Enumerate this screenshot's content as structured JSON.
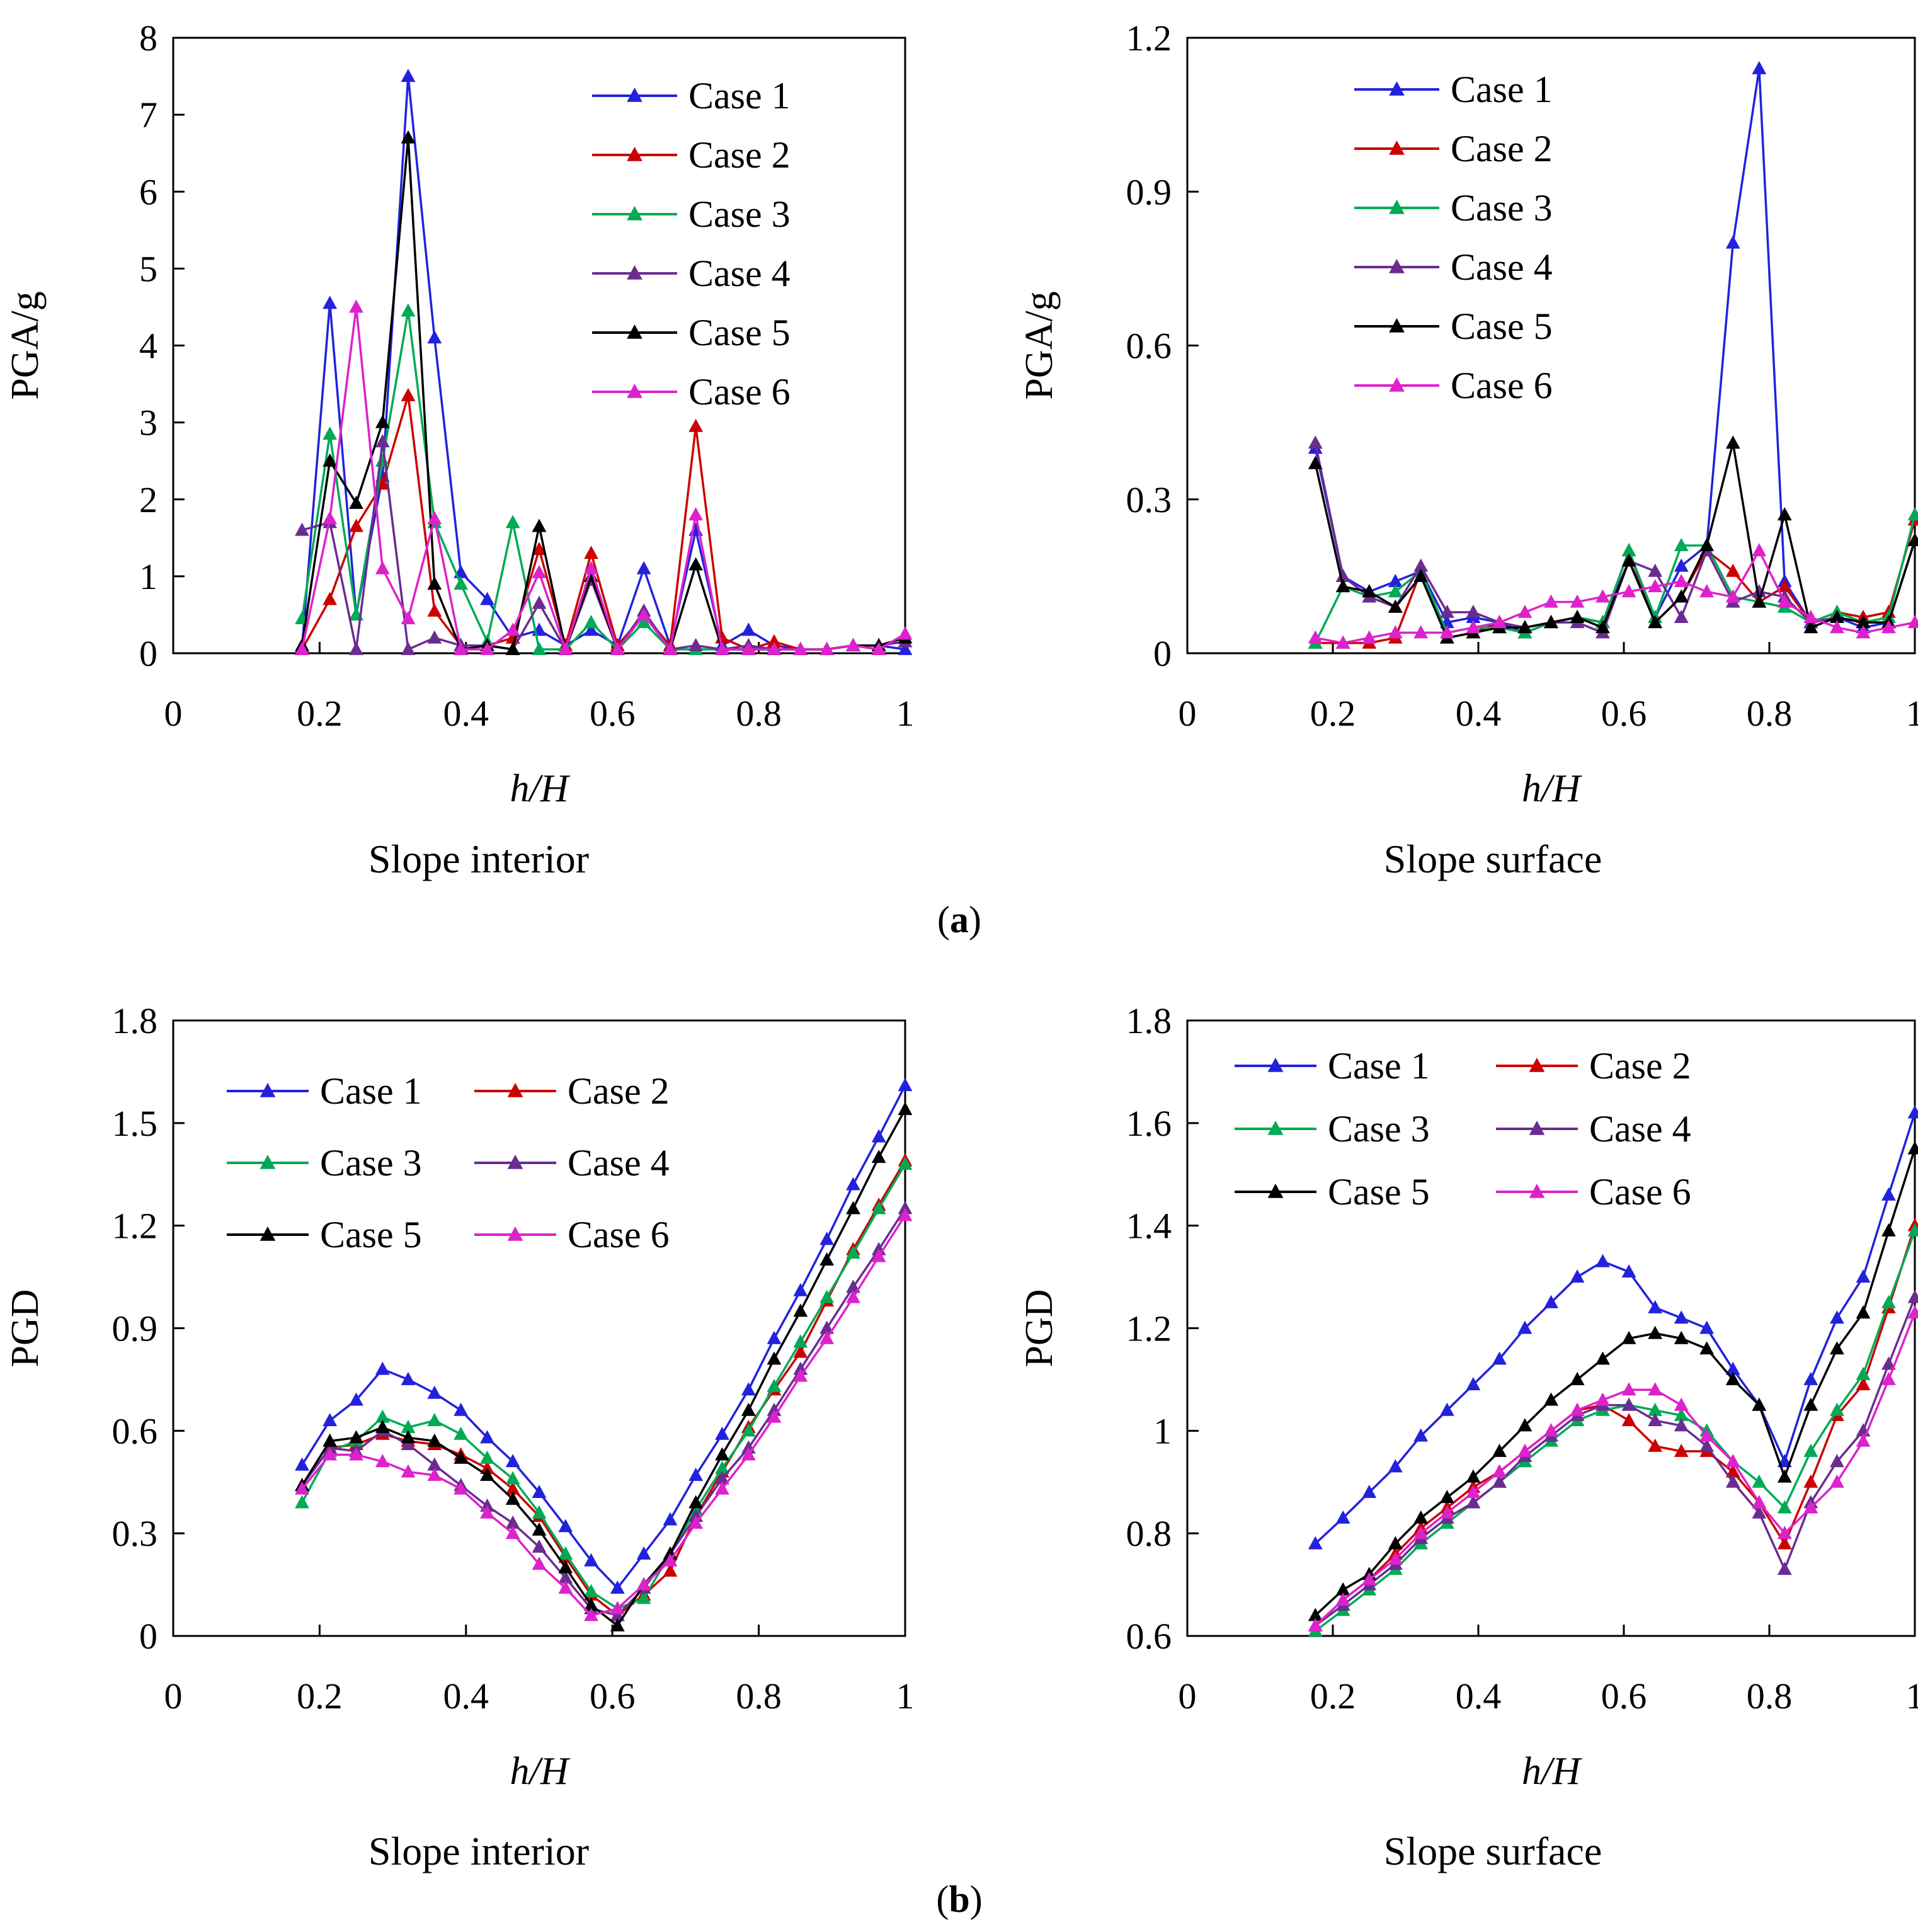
{
  "panel_labels": [
    "(a)",
    "(b)"
  ],
  "series_colors": {
    "Case 1": "#2222dd",
    "Case 2": "#cc0000",
    "Case 3": "#00aa55",
    "Case 4": "#6a2c91",
    "Case 5": "#000000",
    "Case 6": "#dd22cc"
  },
  "chart_data": [
    {
      "type": "line",
      "title": "Slope interior",
      "xlabel": "h/H",
      "ylabel": "PGA/g",
      "xlim": [
        0,
        1
      ],
      "ylim": [
        0,
        8
      ],
      "xticks": [
        "0",
        "0.2",
        "0.4",
        "0.6",
        "0.8",
        "1"
      ],
      "yticks": [
        "0",
        "1",
        "2",
        "3",
        "4",
        "5",
        "6",
        "7",
        "8"
      ],
      "legend": "top-right",
      "grid": false,
      "x": [
        0.176,
        0.214,
        0.25,
        0.286,
        0.321,
        0.357,
        0.393,
        0.429,
        0.464,
        0.5,
        0.536,
        0.571,
        0.607,
        0.643,
        0.679,
        0.714,
        0.75,
        0.786,
        0.821,
        0.857,
        0.893,
        0.929,
        0.964,
        1.0
      ],
      "series": [
        {
          "name": "Case 1",
          "values": [
            0.08,
            4.55,
            0.5,
            2.3,
            7.5,
            4.1,
            1.05,
            0.7,
            0.2,
            0.3,
            0.1,
            0.3,
            0.1,
            1.1,
            0.1,
            1.6,
            0.1,
            0.3,
            0.1,
            0.05,
            0.05,
            0.1,
            0.1,
            0.05
          ]
        },
        {
          "name": "Case 2",
          "values": [
            0.05,
            0.7,
            1.65,
            2.2,
            3.35,
            0.55,
            0.1,
            0.1,
            0.2,
            1.35,
            0.1,
            1.3,
            0.1,
            0.5,
            0.1,
            2.95,
            0.2,
            0.05,
            0.15,
            0.05,
            0.05,
            0.1,
            0.05,
            0.25
          ]
        },
        {
          "name": "Case 3",
          "values": [
            0.45,
            2.85,
            0.5,
            2.5,
            4.45,
            1.7,
            0.9,
            0.15,
            1.7,
            0.05,
            0.05,
            0.4,
            0.05,
            0.4,
            0.05,
            0.05,
            0.05,
            0.05,
            0.05,
            0.05,
            0.05,
            0.1,
            0.1,
            0.2
          ]
        },
        {
          "name": "Case 4",
          "values": [
            1.6,
            1.7,
            0.05,
            2.75,
            0.05,
            0.2,
            0.1,
            0.1,
            0.05,
            0.65,
            0.05,
            0.95,
            0.05,
            0.55,
            0.05,
            0.1,
            0.05,
            0.1,
            0.05,
            0.05,
            0.05,
            0.1,
            0.1,
            0.15
          ]
        },
        {
          "name": "Case 5",
          "values": [
            0.1,
            2.5,
            1.95,
            3.0,
            6.7,
            0.9,
            0.05,
            0.1,
            0.05,
            1.65,
            0.05,
            1.0,
            0.05,
            0.5,
            0.05,
            1.15,
            0.05,
            0.05,
            0.05,
            0.05,
            0.05,
            0.1,
            0.1,
            0.2
          ]
        },
        {
          "name": "Case 6",
          "values": [
            0.05,
            1.75,
            4.5,
            1.1,
            0.45,
            1.75,
            0.05,
            0.05,
            0.3,
            1.05,
            0.05,
            1.1,
            0.05,
            0.5,
            0.05,
            1.8,
            0.05,
            0.05,
            0.05,
            0.05,
            0.05,
            0.1,
            0.05,
            0.25
          ]
        }
      ]
    },
    {
      "type": "line",
      "title": "Slope surface",
      "xlabel": "h/H",
      "ylabel": "PGA/g",
      "xlim": [
        0,
        1
      ],
      "ylim": [
        0,
        1.2
      ],
      "xticks": [
        "0",
        "0.2",
        "0.4",
        "0.6",
        "0.8",
        "1"
      ],
      "yticks": [
        "0",
        "0.3",
        "0.6",
        "0.9",
        "1.2"
      ],
      "legend": "top-left",
      "grid": false,
      "x": [
        0.176,
        0.214,
        0.25,
        0.286,
        0.321,
        0.357,
        0.393,
        0.429,
        0.464,
        0.5,
        0.536,
        0.571,
        0.607,
        0.643,
        0.679,
        0.714,
        0.75,
        0.786,
        0.821,
        0.857,
        0.893,
        0.929,
        0.964,
        1.0
      ],
      "series": [
        {
          "name": "Case 1",
          "values": [
            0.4,
            0.15,
            0.12,
            0.14,
            0.16,
            0.06,
            0.07,
            0.06,
            0.04,
            0.06,
            0.07,
            0.06,
            0.18,
            0.07,
            0.17,
            0.21,
            0.8,
            1.14,
            0.14,
            0.06,
            0.07,
            0.05,
            0.06,
            0.22
          ]
        },
        {
          "name": "Case 2",
          "values": [
            0.02,
            0.02,
            0.02,
            0.03,
            0.16,
            0.03,
            0.04,
            0.06,
            0.05,
            0.06,
            0.07,
            0.06,
            0.2,
            0.06,
            0.11,
            0.2,
            0.16,
            0.1,
            0.13,
            0.06,
            0.08,
            0.07,
            0.08,
            0.26
          ]
        },
        {
          "name": "Case 3",
          "values": [
            0.02,
            0.13,
            0.11,
            0.12,
            0.16,
            0.04,
            0.05,
            0.05,
            0.04,
            0.06,
            0.07,
            0.06,
            0.2,
            0.07,
            0.21,
            0.21,
            0.11,
            0.1,
            0.09,
            0.06,
            0.08,
            0.06,
            0.07,
            0.27
          ]
        },
        {
          "name": "Case 4",
          "values": [
            0.41,
            0.15,
            0.11,
            0.09,
            0.17,
            0.08,
            0.08,
            0.06,
            0.05,
            0.06,
            0.06,
            0.04,
            0.18,
            0.16,
            0.07,
            0.2,
            0.1,
            0.12,
            0.11,
            0.06,
            0.07,
            0.06,
            0.06,
            0.22
          ]
        },
        {
          "name": "Case 5",
          "values": [
            0.37,
            0.13,
            0.12,
            0.09,
            0.15,
            0.03,
            0.04,
            0.05,
            0.05,
            0.06,
            0.07,
            0.05,
            0.18,
            0.06,
            0.11,
            0.21,
            0.41,
            0.1,
            0.27,
            0.05,
            0.07,
            0.06,
            0.06,
            0.22
          ]
        },
        {
          "name": "Case 6",
          "values": [
            0.03,
            0.02,
            0.03,
            0.04,
            0.04,
            0.04,
            0.05,
            0.06,
            0.08,
            0.1,
            0.1,
            0.11,
            0.12,
            0.13,
            0.14,
            0.12,
            0.11,
            0.2,
            0.1,
            0.07,
            0.05,
            0.04,
            0.05,
            0.06
          ]
        }
      ]
    },
    {
      "type": "line",
      "title": "Slope interior",
      "xlabel": "h/H",
      "ylabel": "PGD",
      "xlim": [
        0,
        1
      ],
      "ylim": [
        0,
        1.8
      ],
      "xticks": [
        "0",
        "0.2",
        "0.4",
        "0.6",
        "0.8",
        "1"
      ],
      "yticks": [
        "0",
        "0.3",
        "0.6",
        "0.9",
        "1.2",
        "1.5",
        "1.8"
      ],
      "legend": "top-left, 2 columns",
      "grid": false,
      "x": [
        0.176,
        0.214,
        0.25,
        0.286,
        0.321,
        0.357,
        0.393,
        0.429,
        0.464,
        0.5,
        0.536,
        0.571,
        0.607,
        0.643,
        0.679,
        0.714,
        0.75,
        0.786,
        0.821,
        0.857,
        0.893,
        0.929,
        0.964,
        1.0
      ],
      "series": [
        {
          "name": "Case 1",
          "values": [
            0.5,
            0.63,
            0.69,
            0.78,
            0.75,
            0.71,
            0.66,
            0.58,
            0.51,
            0.42,
            0.32,
            0.22,
            0.14,
            0.24,
            0.34,
            0.47,
            0.59,
            0.72,
            0.87,
            1.01,
            1.16,
            1.32,
            1.46,
            1.61
          ]
        },
        {
          "name": "Case 2",
          "values": [
            0.44,
            0.55,
            0.56,
            0.59,
            0.57,
            0.56,
            0.53,
            0.49,
            0.43,
            0.35,
            0.23,
            0.12,
            0.06,
            0.12,
            0.19,
            0.35,
            0.48,
            0.61,
            0.72,
            0.83,
            0.98,
            1.13,
            1.26,
            1.39
          ]
        },
        {
          "name": "Case 3",
          "values": [
            0.39,
            0.54,
            0.57,
            0.64,
            0.61,
            0.63,
            0.59,
            0.52,
            0.46,
            0.36,
            0.24,
            0.13,
            0.08,
            0.11,
            0.24,
            0.37,
            0.49,
            0.6,
            0.73,
            0.86,
            0.99,
            1.12,
            1.25,
            1.38
          ]
        },
        {
          "name": "Case 4",
          "values": [
            0.44,
            0.55,
            0.54,
            0.6,
            0.56,
            0.5,
            0.44,
            0.38,
            0.33,
            0.26,
            0.17,
            0.08,
            0.06,
            0.14,
            0.24,
            0.35,
            0.46,
            0.55,
            0.66,
            0.78,
            0.9,
            1.02,
            1.13,
            1.25
          ]
        },
        {
          "name": "Case 5",
          "values": [
            0.44,
            0.57,
            0.58,
            0.61,
            0.58,
            0.57,
            0.52,
            0.47,
            0.4,
            0.31,
            0.2,
            0.09,
            0.03,
            0.15,
            0.24,
            0.39,
            0.53,
            0.66,
            0.81,
            0.95,
            1.1,
            1.25,
            1.4,
            1.54
          ]
        },
        {
          "name": "Case 6",
          "values": [
            0.43,
            0.53,
            0.53,
            0.51,
            0.48,
            0.47,
            0.43,
            0.36,
            0.3,
            0.21,
            0.14,
            0.06,
            0.08,
            0.15,
            0.22,
            0.33,
            0.43,
            0.53,
            0.64,
            0.76,
            0.87,
            0.99,
            1.11,
            1.23
          ]
        }
      ]
    },
    {
      "type": "line",
      "title": "Slope surface",
      "xlabel": "h/H",
      "ylabel": "PGD",
      "xlim": [
        0,
        1
      ],
      "ylim": [
        0.6,
        1.8
      ],
      "xticks": [
        "0",
        "0.2",
        "0.4",
        "0.6",
        "0.8",
        "1"
      ],
      "yticks": [
        "0.6",
        "0.8",
        "1",
        "1.2",
        "1.4",
        "1.6",
        "1.8"
      ],
      "legend": "top-left, 2 columns",
      "grid": false,
      "x": [
        0.176,
        0.214,
        0.25,
        0.286,
        0.321,
        0.357,
        0.393,
        0.429,
        0.464,
        0.5,
        0.536,
        0.571,
        0.607,
        0.643,
        0.679,
        0.714,
        0.75,
        0.786,
        0.821,
        0.857,
        0.893,
        0.929,
        0.964,
        1.0
      ],
      "series": [
        {
          "name": "Case 1",
          "values": [
            0.78,
            0.83,
            0.88,
            0.93,
            0.99,
            1.04,
            1.09,
            1.14,
            1.2,
            1.25,
            1.3,
            1.33,
            1.31,
            1.24,
            1.22,
            1.2,
            1.12,
            1.05,
            0.94,
            1.1,
            1.22,
            1.3,
            1.46,
            1.62
          ]
        },
        {
          "name": "Case 2",
          "values": [
            0.62,
            0.67,
            0.71,
            0.76,
            0.81,
            0.85,
            0.89,
            0.92,
            0.96,
            1.0,
            1.04,
            1.05,
            1.02,
            0.97,
            0.96,
            0.96,
            0.92,
            0.86,
            0.78,
            0.9,
            1.03,
            1.09,
            1.24,
            1.4
          ]
        },
        {
          "name": "Case 3",
          "values": [
            0.61,
            0.65,
            0.69,
            0.73,
            0.78,
            0.82,
            0.86,
            0.9,
            0.94,
            0.98,
            1.02,
            1.04,
            1.05,
            1.04,
            1.03,
            1.0,
            0.94,
            0.9,
            0.85,
            0.96,
            1.04,
            1.11,
            1.25,
            1.39
          ]
        },
        {
          "name": "Case 4",
          "values": [
            0.62,
            0.66,
            0.7,
            0.74,
            0.79,
            0.83,
            0.86,
            0.9,
            0.95,
            0.99,
            1.03,
            1.05,
            1.05,
            1.02,
            1.01,
            0.97,
            0.9,
            0.84,
            0.73,
            0.86,
            0.94,
            1.0,
            1.13,
            1.26
          ]
        },
        {
          "name": "Case 5",
          "values": [
            0.64,
            0.69,
            0.72,
            0.78,
            0.83,
            0.87,
            0.91,
            0.96,
            1.01,
            1.06,
            1.1,
            1.14,
            1.18,
            1.19,
            1.18,
            1.16,
            1.1,
            1.05,
            0.91,
            1.05,
            1.16,
            1.23,
            1.39,
            1.55
          ]
        },
        {
          "name": "Case 6",
          "values": [
            0.62,
            0.67,
            0.71,
            0.75,
            0.8,
            0.84,
            0.88,
            0.92,
            0.96,
            1.0,
            1.04,
            1.06,
            1.08,
            1.08,
            1.05,
            0.99,
            0.94,
            0.86,
            0.8,
            0.85,
            0.9,
            0.98,
            1.1,
            1.23
          ]
        }
      ]
    }
  ]
}
